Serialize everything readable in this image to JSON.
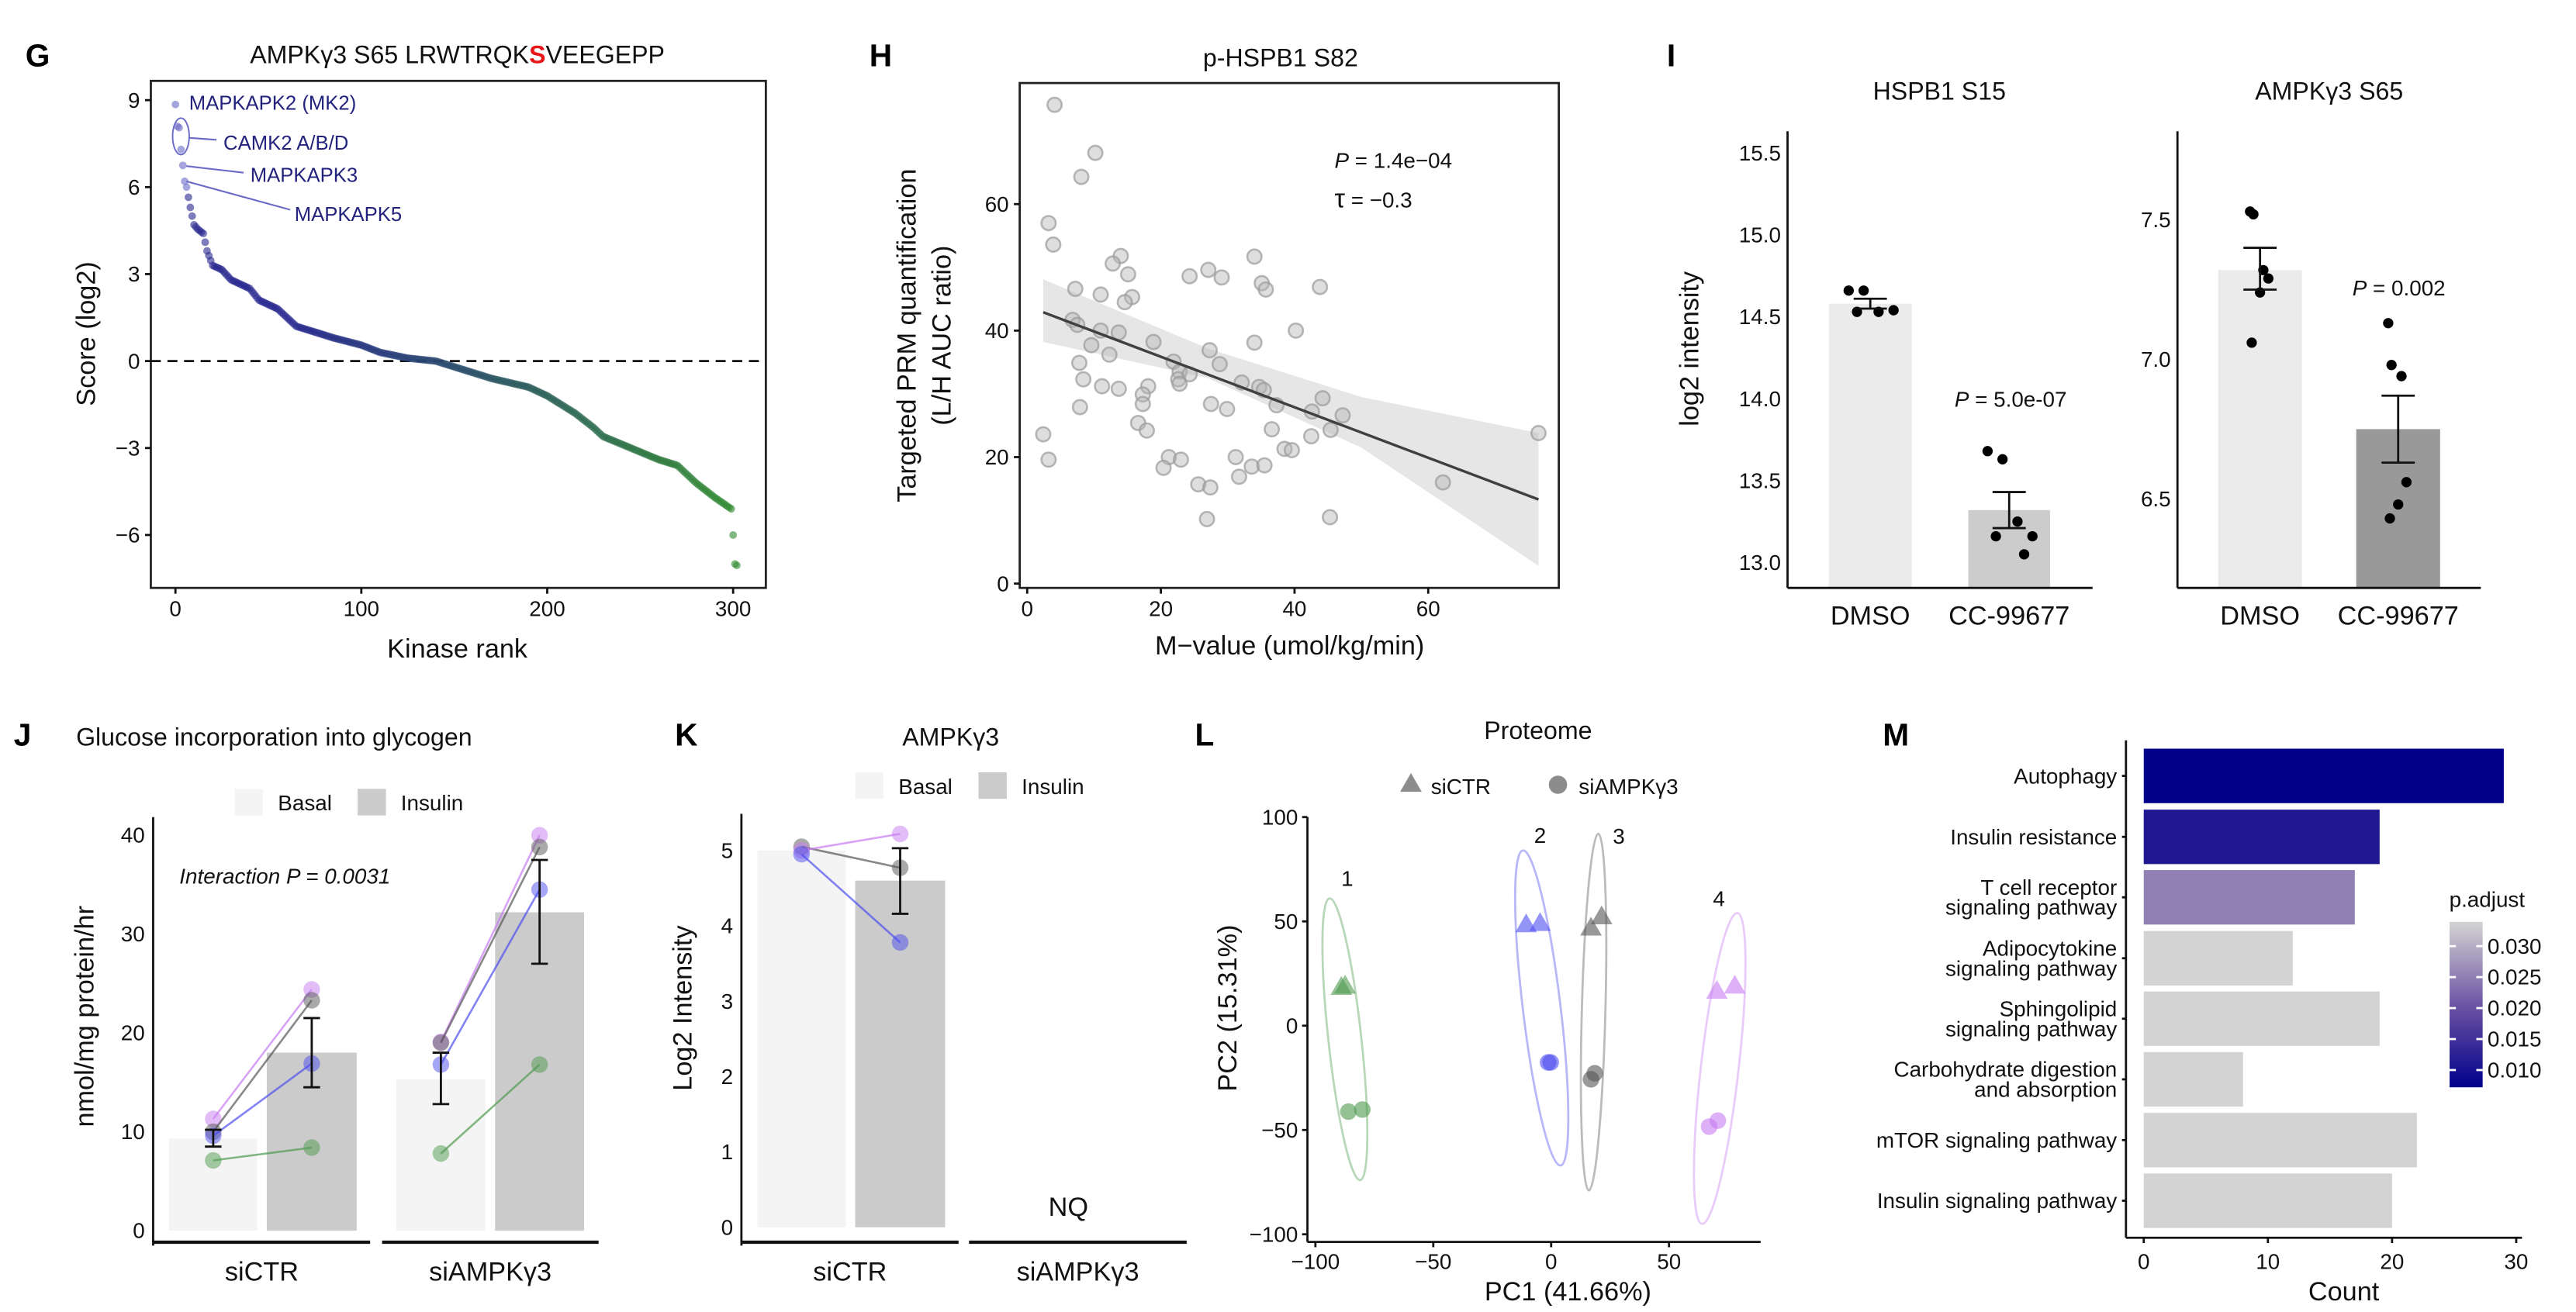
{
  "chart_data": [
    {
      "panel_label": "G",
      "type": "scatter",
      "title_prefix": "AMPKγ3 S65 LRWTRQK",
      "title_highlight": "S",
      "title_suffix": "VEEGEPP",
      "highlight_color": "#e8161b",
      "xlabel": "Kinase rank",
      "ylabel": "Score (log2)",
      "xlim": [
        -14,
        316
      ],
      "ylim": [
        -7.9,
        9.7
      ],
      "xticks": [
        "0",
        "100",
        "200",
        "300"
      ],
      "yticks": [
        "−6",
        "−3",
        "0",
        "3",
        "6",
        "9"
      ],
      "reference_line": {
        "y": 0,
        "style": "dashed"
      },
      "color_high_score": "#262690",
      "color_low_score": "#2f8a2f",
      "points": [
        [
          0,
          8.85
        ],
        [
          1,
          8.1
        ],
        [
          2,
          8.05
        ],
        [
          3,
          7.3
        ],
        [
          4,
          6.75
        ],
        [
          5,
          6.2
        ],
        [
          6,
          6.0
        ],
        [
          8,
          5.3
        ],
        [
          10,
          4.7
        ],
        [
          12,
          4.55
        ],
        [
          15,
          4.4
        ],
        [
          17,
          3.8
        ],
        [
          20,
          3.3
        ],
        [
          25,
          3.15
        ],
        [
          30,
          2.8
        ],
        [
          40,
          2.5
        ],
        [
          45,
          2.1
        ],
        [
          55,
          1.8
        ],
        [
          60,
          1.5
        ],
        [
          65,
          1.2
        ],
        [
          75,
          1.0
        ],
        [
          85,
          0.8
        ],
        [
          100,
          0.55
        ],
        [
          110,
          0.3
        ],
        [
          125,
          0.1
        ],
        [
          140,
          0.0
        ],
        [
          150,
          -0.2
        ],
        [
          170,
          -0.6
        ],
        [
          190,
          -0.9
        ],
        [
          200,
          -1.2
        ],
        [
          215,
          -1.8
        ],
        [
          225,
          -2.3
        ],
        [
          230,
          -2.6
        ],
        [
          245,
          -3.0
        ],
        [
          260,
          -3.4
        ],
        [
          270,
          -3.6
        ],
        [
          280,
          -4.2
        ],
        [
          290,
          -4.7
        ],
        [
          299,
          -5.1
        ],
        [
          300,
          -6.0
        ],
        [
          301,
          -7.0
        ],
        [
          302,
          -7.05
        ]
      ],
      "annotations": [
        {
          "label": "MAPKAPK2 (MK2)",
          "rank": 0,
          "score": 8.85
        },
        {
          "label": "CAMK2 A/B/D",
          "rank": [
            1,
            3
          ],
          "score": [
            8.1,
            7.3
          ]
        },
        {
          "label": "MAPKAPK3",
          "rank": 4,
          "score": 6.75
        },
        {
          "label": "MAPKAPK5",
          "rank": 5,
          "score": 6.2
        }
      ]
    },
    {
      "panel_label": "H",
      "type": "scatter",
      "title": "p-HSPB1 S82",
      "xlabel": "M−value (umol/kg/min)",
      "ylabel_line1": "Targeted PRM quantification",
      "ylabel_line2": "(L/H AUC ratio)",
      "xlim": [
        -1,
        79.5
      ],
      "ylim": [
        -1,
        79
      ],
      "xticks": [
        "0",
        "20",
        "40",
        "60"
      ],
      "yticks": [
        "0",
        "20",
        "40",
        "60"
      ],
      "stat_p_label": "P",
      "stat_p_value": " = 1.4e−04",
      "stat_tau_label": "τ",
      "stat_tau_value": " = −0.3",
      "point_color": "#b5b5b5",
      "points": [
        [
          4.1,
          75.7
        ],
        [
          10.2,
          68.1
        ],
        [
          8.1,
          64.3
        ],
        [
          3.2,
          57.0
        ],
        [
          3.9,
          53.6
        ],
        [
          7.2,
          46.6
        ],
        [
          11.0,
          45.7
        ],
        [
          14.0,
          51.8
        ],
        [
          12.8,
          50.6
        ],
        [
          15.1,
          48.9
        ],
        [
          15.7,
          45.3
        ],
        [
          14.6,
          44.5
        ],
        [
          6.8,
          41.7
        ],
        [
          7.5,
          40.9
        ],
        [
          11.0,
          40.0
        ],
        [
          13.7,
          39.7
        ],
        [
          9.6,
          37.7
        ],
        [
          12.3,
          36.2
        ],
        [
          7.8,
          34.9
        ],
        [
          8.4,
          32.3
        ],
        [
          11.2,
          31.2
        ],
        [
          13.7,
          30.8
        ],
        [
          7.9,
          27.9
        ],
        [
          18.9,
          38.2
        ],
        [
          18.1,
          31.2
        ],
        [
          17.3,
          29.9
        ],
        [
          17.3,
          28.4
        ],
        [
          16.6,
          25.4
        ],
        [
          17.9,
          24.2
        ],
        [
          2.4,
          23.6
        ],
        [
          3.2,
          19.6
        ],
        [
          24.3,
          48.6
        ],
        [
          27.1,
          49.6
        ],
        [
          29.1,
          48.4
        ],
        [
          27.3,
          36.9
        ],
        [
          28.8,
          34.7
        ],
        [
          21.9,
          35.1
        ],
        [
          22.8,
          33.5
        ],
        [
          22.6,
          32.3
        ],
        [
          24.3,
          33.1
        ],
        [
          22.8,
          31.6
        ],
        [
          27.5,
          28.4
        ],
        [
          29.9,
          27.6
        ],
        [
          21.2,
          20.0
        ],
        [
          23.0,
          19.6
        ],
        [
          20.4,
          18.3
        ],
        [
          25.6,
          15.7
        ],
        [
          27.4,
          15.2
        ],
        [
          26.9,
          10.2
        ],
        [
          34.0,
          51.7
        ],
        [
          35.1,
          47.5
        ],
        [
          35.7,
          46.5
        ],
        [
          34.0,
          38.1
        ],
        [
          32.1,
          31.8
        ],
        [
          34.7,
          31.1
        ],
        [
          35.4,
          30.6
        ],
        [
          37.3,
          28.2
        ],
        [
          36.6,
          24.4
        ],
        [
          31.2,
          20.0
        ],
        [
          31.7,
          16.9
        ],
        [
          33.6,
          18.5
        ],
        [
          35.5,
          18.7
        ],
        [
          38.5,
          21.3
        ],
        [
          39.6,
          21.1
        ],
        [
          40.2,
          40.0
        ],
        [
          43.8,
          46.9
        ],
        [
          44.2,
          29.3
        ],
        [
          42.6,
          27.2
        ],
        [
          42.5,
          23.3
        ],
        [
          45.4,
          24.3
        ],
        [
          47.2,
          26.6
        ],
        [
          45.3,
          10.5
        ],
        [
          62.2,
          16.0
        ],
        [
          76.5,
          23.8
        ]
      ],
      "fit_line": [
        [
          2.4,
          42.9
        ],
        [
          76.5,
          13.3
        ]
      ],
      "confidence_band": [
        [
          2.4,
          38.2,
          48.1
        ],
        [
          27,
          32.5,
          37.2
        ],
        [
          50,
          21.5,
          29.5
        ],
        [
          76.5,
          2.8,
          23.8
        ]
      ]
    },
    {
      "panel_label": "I",
      "type": "bar",
      "ylabel": "log2 intensity",
      "subplots": [
        {
          "title": "HSPB1 S15",
          "ylim": [
            12.85,
            15.6
          ],
          "yticks": [
            "13.0",
            "13.5",
            "14.0",
            "14.5",
            "15.0",
            "15.5"
          ],
          "p_label": "P",
          "p_value": " = 5.0e-07",
          "bars": [
            {
              "category": "DMSO",
              "mean": 14.58,
              "sem": [
                14.55,
                14.61
              ],
              "color": "#ebebeb",
              "points": [
                14.66,
                14.66,
                14.53,
                14.54,
                14.53
              ]
            },
            {
              "category": "CC-99677",
              "mean": 13.32,
              "sem": [
                13.21,
                13.43
              ],
              "color": "#cccccc",
              "points": [
                13.68,
                13.63,
                13.25,
                13.16,
                13.16,
                13.05
              ]
            }
          ]
        },
        {
          "title": "AMPKγ3 S65",
          "ylim": [
            6.24,
            7.89
          ],
          "yticks": [
            "6.5",
            "7.0",
            "7.5"
          ],
          "p_label": "P",
          "p_value": " = 0.002",
          "bars": [
            {
              "category": "DMSO",
              "mean": 7.32,
              "sem": [
                7.25,
                7.4
              ],
              "color": "#ebebeb",
              "points": [
                7.53,
                7.52,
                7.32,
                7.29,
                7.24,
                7.06
              ]
            },
            {
              "category": "CC-99677",
              "mean": 6.75,
              "sem": [
                6.63,
                6.87
              ],
              "color": "#999999",
              "points": [
                7.13,
                6.98,
                6.94,
                6.56,
                6.48,
                6.43
              ]
            }
          ]
        }
      ]
    },
    {
      "panel_label": "J",
      "type": "bar",
      "title": "Glucose incorporation into glycogen",
      "ylabel": "nmol/mg protein/hr",
      "ylim": [
        0,
        41
      ],
      "yticks": [
        "0",
        "10",
        "20",
        "30",
        "40"
      ],
      "legend": [
        {
          "label": "Basal",
          "color": "#f4f4f4"
        },
        {
          "label": "Insulin",
          "color": "#cbcbcb"
        }
      ],
      "annotation": "Interaction P = 0.0031",
      "groups": [
        {
          "label": "siCTR",
          "basal": {
            "mean": 9.3,
            "sem": [
              8.5,
              10.2
            ]
          },
          "insulin": {
            "mean": 18.0,
            "sem": [
              14.5,
              21.5
            ]
          },
          "replicates": [
            {
              "color": "#c77cf2",
              "basal": 11.3,
              "insulin": 24.4
            },
            {
              "color": "#555555",
              "basal": 10.0,
              "insulin": 23.3
            },
            {
              "color": "#4d4df0",
              "basal": 9.6,
              "insulin": 16.9
            },
            {
              "color": "#4e9a4e",
              "basal": 7.1,
              "insulin": 8.4
            }
          ]
        },
        {
          "label": "siAMPKγ3",
          "basal": {
            "mean": 15.3,
            "sem": [
              12.8,
              18.0
            ]
          },
          "insulin": {
            "mean": 32.2,
            "sem": [
              27.0,
              37.5
            ]
          },
          "replicates": [
            {
              "color": "#c77cf2",
              "basal": 19.1,
              "insulin": 40.0
            },
            {
              "color": "#555555",
              "basal": 19.0,
              "insulin": 38.8
            },
            {
              "color": "#4d4df0",
              "basal": 16.8,
              "insulin": 34.5
            },
            {
              "color": "#4e9a4e",
              "basal": 7.8,
              "insulin": 16.8
            }
          ]
        }
      ]
    },
    {
      "panel_label": "K",
      "type": "bar",
      "title": "AMPKγ3",
      "ylabel": "Log2 Intensity",
      "ylim": [
        0,
        5.4
      ],
      "yticks": [
        "0",
        "1",
        "2",
        "3",
        "4",
        "5"
      ],
      "legend": [
        {
          "label": "Basal",
          "color": "#f4f4f4"
        },
        {
          "label": "Insulin",
          "color": "#cbcbcb"
        }
      ],
      "groups": [
        {
          "label": "siCTR",
          "basal": {
            "mean": 5.0
          },
          "insulin": {
            "mean": 4.6,
            "sem": [
              4.16,
              5.03
            ]
          },
          "replicates": [
            {
              "color": "#555555",
              "basal": 5.05,
              "insulin": 4.77
            },
            {
              "color": "#c77cf2",
              "basal": 5.0,
              "insulin": 5.22
            },
            {
              "color": "#4d4df0",
              "basal": 4.95,
              "insulin": 3.78
            }
          ]
        },
        {
          "label": "siAMPKγ3",
          "not_quantified_label": "NQ"
        }
      ]
    },
    {
      "panel_label": "L",
      "type": "scatter",
      "title": "Proteome",
      "xlabel": "PC1 (41.66%)",
      "ylabel": "PC2 (15.31%)",
      "xlim": [
        -104,
        88
      ],
      "ylim": [
        -104,
        100
      ],
      "xticks": [
        "−100",
        "−50",
        "0",
        "50"
      ],
      "yticks": [
        "−100",
        "−50",
        "0",
        "50",
        "100"
      ],
      "legend": [
        {
          "label": "siCTR",
          "shape": "triangle"
        },
        {
          "label": "siAMPKγ3",
          "shape": "circle"
        }
      ],
      "legend_color": "#8c8c8c",
      "groups": [
        {
          "label": "1",
          "label_pos": [
            -86.5,
            71
          ],
          "color": "#4e9a4e",
          "siCTR": [
            [
              -89,
              17.8
            ],
            [
              -87.4,
              18.4
            ]
          ],
          "siAMPKγ3": [
            [
              -86,
              -41.2
            ],
            [
              -80.1,
              -40.2
            ]
          ],
          "ellipse_major_axis": [
            [
              -94,
              61
            ],
            [
              -81,
              -74
            ]
          ],
          "ellipse_minor_halfwidth": 7
        },
        {
          "label": "2",
          "label_pos": [
            -4.7,
            91.7
          ],
          "color": "#4d4df0",
          "siCTR": [
            [
              -10.6,
              47.8
            ],
            [
              -4.7,
              48.4
            ]
          ],
          "siAMPKγ3": [
            [
              -1.3,
              -17.6
            ],
            [
              -0.2,
              -17.6
            ]
          ],
          "ellipse_major_axis": [
            [
              -12,
              84
            ],
            [
              4,
              -67
            ]
          ],
          "ellipse_minor_halfwidth": 8
        },
        {
          "label": "3",
          "label_pos": [
            28.7,
            91.3
          ],
          "color": "#555555",
          "siCTR": [
            [
              16.9,
              46.2
            ],
            [
              21.4,
              51.6
            ]
          ],
          "siAMPKγ3": [
            [
              16.9,
              -25.7
            ],
            [
              18.5,
              -22.8
            ]
          ],
          "ellipse_major_axis": [
            [
              20,
              92
            ],
            [
              16,
              -79
            ]
          ],
          "ellipse_minor_halfwidth": 5
        },
        {
          "label": "4",
          "label_pos": [
            71.2,
            61.3
          ],
          "color": "#c77cf2",
          "siCTR": [
            [
              70.3,
              15.9
            ],
            [
              77.9,
              18.4
            ]
          ],
          "siAMPKγ3": [
            [
              67,
              -48.4
            ],
            [
              70.7,
              -45.5
            ]
          ],
          "ellipse_major_axis": [
            [
              79,
              54
            ],
            [
              64,
              -95
            ]
          ],
          "ellipse_minor_halfwidth": 8
        }
      ]
    },
    {
      "panel_label": "M",
      "type": "bar",
      "orientation": "horizontal",
      "xlabel": "Count",
      "xlim": [
        -1.4,
        30.5
      ],
      "xticks": [
        "0",
        "10",
        "20",
        "30"
      ],
      "legend_title": "p.adjust",
      "legend_ticks": [
        "0.030",
        "0.025",
        "0.020",
        "0.015",
        "0.010"
      ],
      "color_scale": {
        "low": "#00008b",
        "mid": "#6a51a3",
        "high": "#d3d3d3",
        "range": [
          0.0072,
          0.0339
        ]
      },
      "bars": [
        {
          "label": [
            "Autophagy"
          ],
          "count": 29,
          "p_adjust": 0.0072
        },
        {
          "label": [
            "Insulin resistance"
          ],
          "count": 19,
          "p_adjust": 0.011
        },
        {
          "label": [
            "T cell receptor",
            "signaling pathway"
          ],
          "count": 17,
          "p_adjust": 0.025
        },
        {
          "label": [
            "Adipocytokine",
            "signaling pathway"
          ],
          "count": 12,
          "p_adjust": 0.0339
        },
        {
          "label": [
            "Sphingolipid",
            "signaling pathway"
          ],
          "count": 19,
          "p_adjust": 0.0339
        },
        {
          "label": [
            "Carbohydrate digestion",
            "and absorption"
          ],
          "count": 8,
          "p_adjust": 0.0339
        },
        {
          "label": [
            "mTOR signaling pathway"
          ],
          "count": 22,
          "p_adjust": 0.0339
        },
        {
          "label": [
            "Insulin signaling pathway"
          ],
          "count": 20,
          "p_adjust": 0.0339
        }
      ]
    }
  ]
}
